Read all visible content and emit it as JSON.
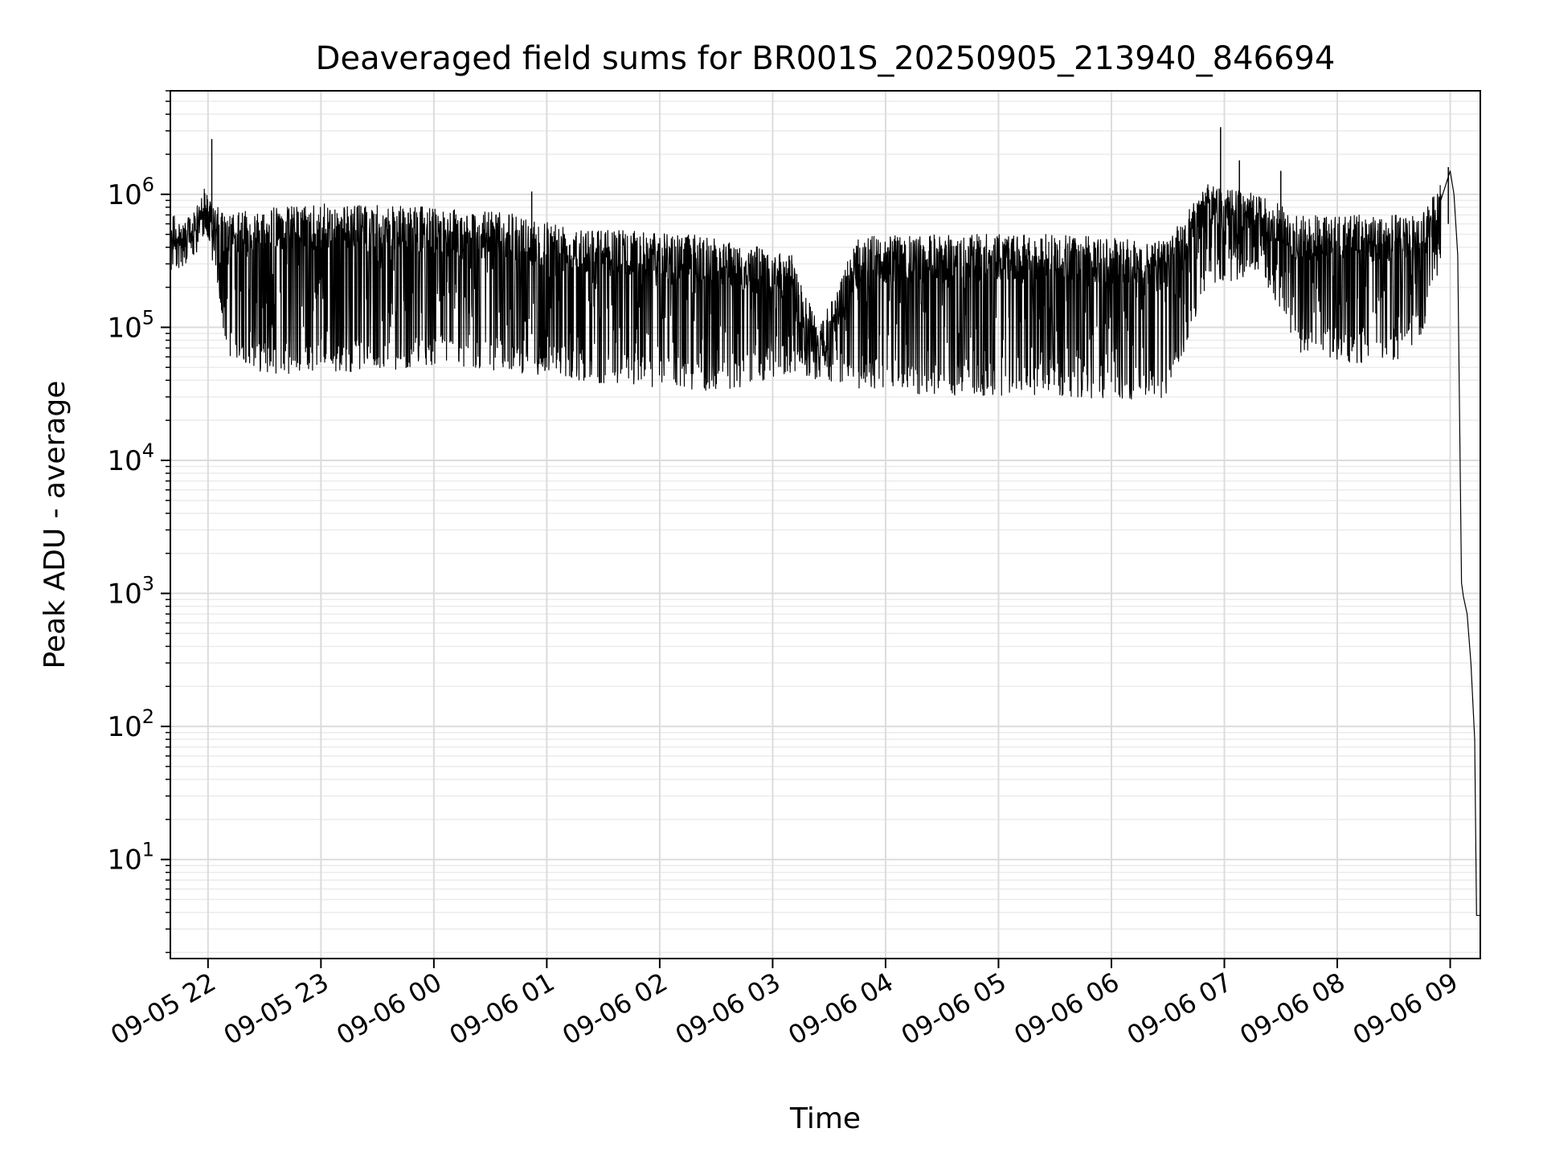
{
  "chart_data": {
    "type": "line",
    "title": "Deaveraged field sums for BR001S_20250905_213940_846694",
    "xlabel": "Time",
    "ylabel": "Peak ADU - average",
    "yscale": "log",
    "ylim": [
      1.8,
      6000000
    ],
    "xlim": [
      "2025-09-05 21:40",
      "2025-09-06 09:16"
    ],
    "grid": true,
    "x_ticks": [
      {
        "t": "2025-09-05 22:00",
        "label": "09-05 22"
      },
      {
        "t": "2025-09-05 23:00",
        "label": "09-05 23"
      },
      {
        "t": "2025-09-06 00:00",
        "label": "09-06 00"
      },
      {
        "t": "2025-09-06 01:00",
        "label": "09-06 01"
      },
      {
        "t": "2025-09-06 02:00",
        "label": "09-06 02"
      },
      {
        "t": "2025-09-06 03:00",
        "label": "09-06 03"
      },
      {
        "t": "2025-09-06 04:00",
        "label": "09-06 04"
      },
      {
        "t": "2025-09-06 05:00",
        "label": "09-06 05"
      },
      {
        "t": "2025-09-06 06:00",
        "label": "09-06 06"
      },
      {
        "t": "2025-09-06 07:00",
        "label": "09-06 07"
      },
      {
        "t": "2025-09-06 08:00",
        "label": "09-06 08"
      },
      {
        "t": "2025-09-06 09:00",
        "label": "09-06 09"
      }
    ],
    "y_ticks": [
      {
        "value": 10,
        "base": "10",
        "exp": "1"
      },
      {
        "value": 100,
        "base": "10",
        "exp": "2"
      },
      {
        "value": 1000,
        "base": "10",
        "exp": "3"
      },
      {
        "value": 10000,
        "base": "10",
        "exp": "4"
      },
      {
        "value": 100000,
        "base": "10",
        "exp": "5"
      },
      {
        "value": 1000000,
        "base": "10",
        "exp": "6"
      }
    ],
    "series": [
      {
        "color": "#000000",
        "envelope": [
          {
            "t": "2025-09-05 21:40",
            "upper": 550000,
            "lower": 420000
          },
          {
            "t": "2025-09-05 21:52",
            "upper": 700000,
            "lower": 400000
          },
          {
            "t": "2025-09-05 21:58",
            "upper": 1100000,
            "lower": 600000
          },
          {
            "t": "2025-09-05 22:03",
            "upper": 850000,
            "lower": 250000
          },
          {
            "t": "2025-09-05 22:10",
            "upper": 700000,
            "lower": 60000
          },
          {
            "t": "2025-09-05 22:30",
            "upper": 800000,
            "lower": 45000
          },
          {
            "t": "2025-09-05 23:00",
            "upper": 850000,
            "lower": 45000
          },
          {
            "t": "2025-09-06 00:00",
            "upper": 800000,
            "lower": 50000
          },
          {
            "t": "2025-09-06 00:50",
            "upper": 700000,
            "lower": 45000
          },
          {
            "t": "2025-09-06 01:30",
            "upper": 550000,
            "lower": 38000
          },
          {
            "t": "2025-09-06 02:00",
            "upper": 520000,
            "lower": 35000
          },
          {
            "t": "2025-09-06 02:30",
            "upper": 480000,
            "lower": 32000
          },
          {
            "t": "2025-09-06 03:10",
            "upper": 350000,
            "lower": 45000
          },
          {
            "t": "2025-09-06 03:25",
            "upper": 100000,
            "lower": 40000
          },
          {
            "t": "2025-09-06 03:45",
            "upper": 480000,
            "lower": 35000
          },
          {
            "t": "2025-09-06 04:30",
            "upper": 500000,
            "lower": 30000
          },
          {
            "t": "2025-09-06 05:30",
            "upper": 500000,
            "lower": 30000
          },
          {
            "t": "2025-09-06 06:30",
            "upper": 450000,
            "lower": 28000
          },
          {
            "t": "2025-09-06 06:50",
            "upper": 1200000,
            "lower": 200000
          },
          {
            "t": "2025-09-06 07:20",
            "upper": 1000000,
            "lower": 250000
          },
          {
            "t": "2025-09-06 07:40",
            "upper": 700000,
            "lower": 60000
          },
          {
            "t": "2025-09-06 08:30",
            "upper": 700000,
            "lower": 50000
          },
          {
            "t": "2025-09-06 08:45",
            "upper": 700000,
            "lower": 90000
          },
          {
            "t": "2025-09-06 08:55",
            "upper": 1200000,
            "lower": 300000
          }
        ],
        "spikes": [
          {
            "t": "2025-09-05 22:02",
            "value": 2600000
          },
          {
            "t": "2025-09-06 00:52",
            "value": 1050000
          },
          {
            "t": "2025-09-06 06:58",
            "value": 3200000
          },
          {
            "t": "2025-09-06 07:08",
            "value": 1800000
          },
          {
            "t": "2025-09-06 07:30",
            "value": 1500000
          },
          {
            "t": "2025-09-06 08:59",
            "value": 1600000
          }
        ],
        "tail": [
          {
            "t": "2025-09-06 08:55",
            "value": 900000
          },
          {
            "t": "2025-09-06 09:00",
            "value": 1500000
          },
          {
            "t": "2025-09-06 09:02",
            "value": 1000000
          },
          {
            "t": "2025-09-06 09:04",
            "value": 350000
          },
          {
            "t": "2025-09-06 09:06",
            "value": 1200
          },
          {
            "t": "2025-09-06 09:07",
            "value": 950
          },
          {
            "t": "2025-09-06 09:09",
            "value": 700
          },
          {
            "t": "2025-09-06 09:11",
            "value": 300
          },
          {
            "t": "2025-09-06 09:13",
            "value": 80
          },
          {
            "t": "2025-09-06 09:14",
            "value": 3.8
          },
          {
            "t": "2025-09-06 09:16",
            "value": 3.8
          }
        ]
      }
    ]
  }
}
